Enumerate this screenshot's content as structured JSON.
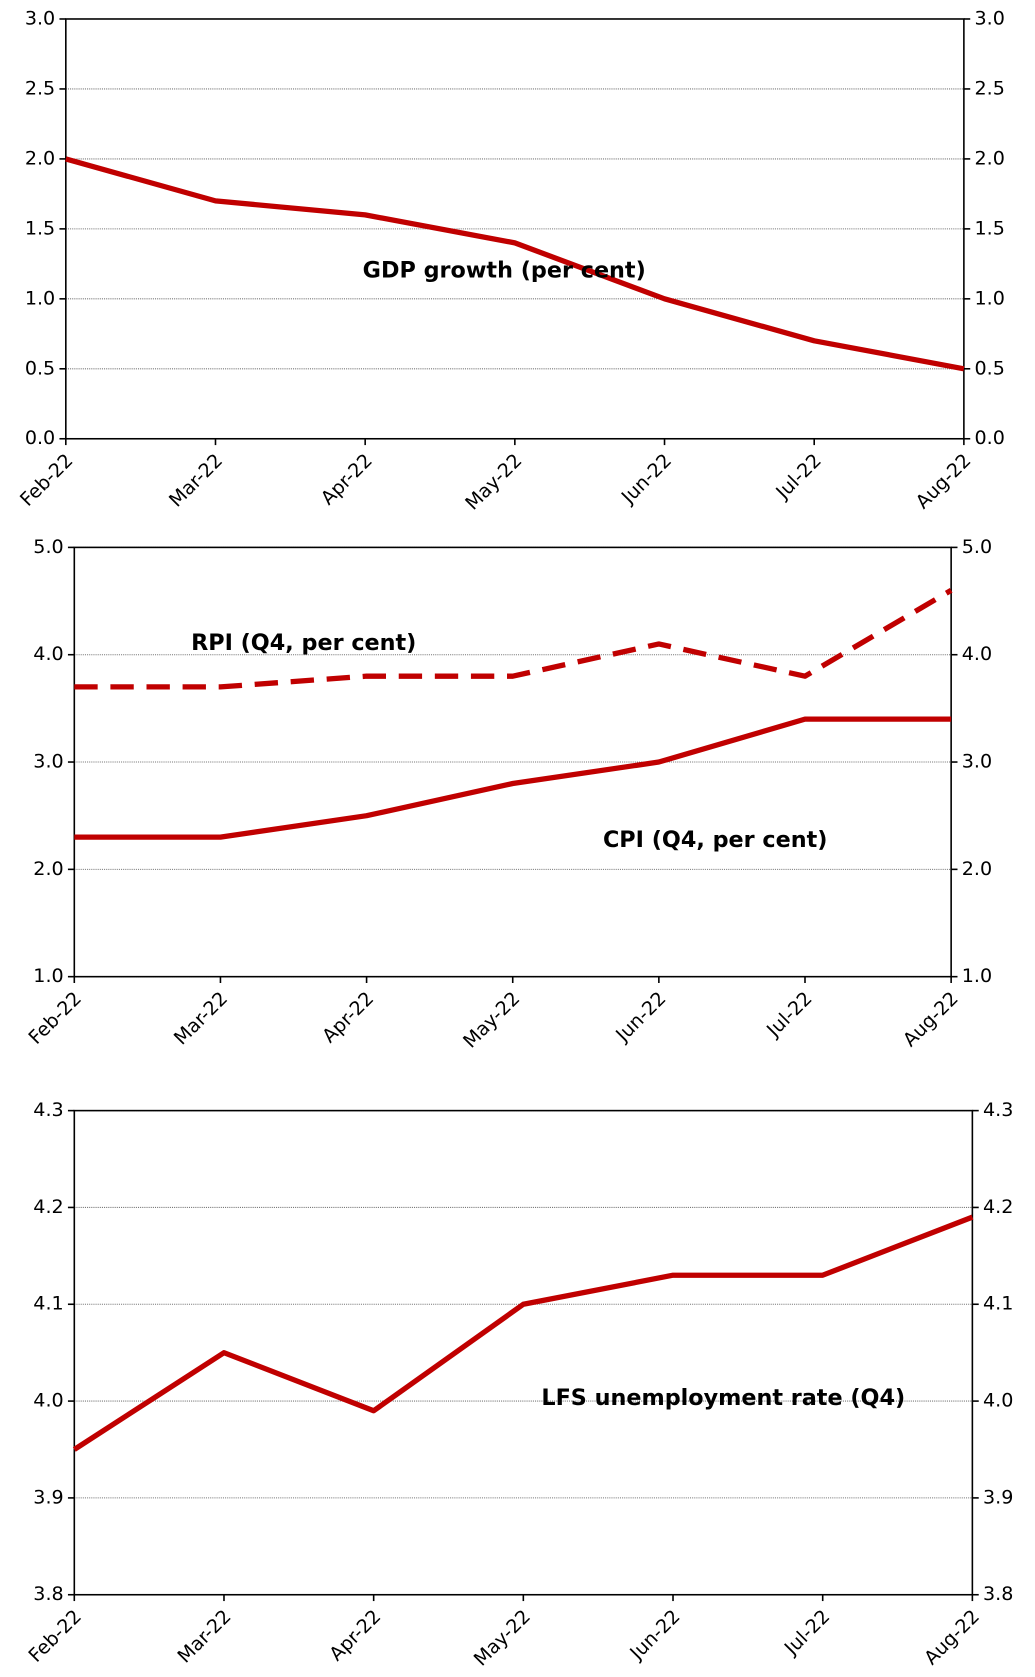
{
  "chart_data": [
    {
      "type": "line",
      "categories": [
        "Feb-22",
        "Mar-22",
        "Apr-22",
        "May-22",
        "Jun-22",
        "Jul-22",
        "Aug-22"
      ],
      "series": [
        {
          "name": "GDP growth (per cent)",
          "color": "#c00000",
          "style": "solid",
          "values": [
            2.0,
            1.7,
            1.6,
            1.4,
            1.0,
            0.7,
            0.5
          ]
        }
      ],
      "ylim": [
        0,
        3
      ],
      "yticks": [
        {
          "value": 0,
          "label": "0.0"
        },
        0.5,
        {
          "value": 1,
          "label": "1.0"
        },
        1.5,
        {
          "value": 2,
          "label": "2.0"
        },
        2.5,
        {
          "value": 3,
          "label": "3.0"
        }
      ],
      "grid": true
    },
    {
      "type": "line",
      "categories": [
        "Feb-22",
        "Mar-22",
        "Apr-22",
        "May-22",
        "Jun-22",
        "Jul-22",
        "Aug-22"
      ],
      "series": [
        {
          "name": "RPI (Q4, per cent)",
          "color": "#c00000",
          "style": "dashed",
          "values": [
            3.7,
            3.7,
            3.8,
            3.8,
            4.1,
            3.8,
            4.6
          ]
        },
        {
          "name": "CPI (Q4, per cent)",
          "color": "#c00000",
          "style": "solid",
          "values": [
            2.3,
            2.3,
            2.5,
            2.8,
            3.0,
            3.4,
            3.4
          ]
        }
      ],
      "ylim": [
        1,
        5
      ],
      "yticks": [
        {
          "value": 1,
          "label": "1.0"
        },
        {
          "value": 2,
          "label": "2.0"
        },
        {
          "value": 3,
          "label": "3.0"
        },
        {
          "value": 4,
          "label": "4.0"
        },
        {
          "value": 5,
          "label": "5.0"
        }
      ],
      "grid": true
    },
    {
      "type": "line",
      "categories": [
        "Feb-22",
        "Mar-22",
        "Apr-22",
        "May-22",
        "Jun-22",
        "Jul-22",
        "Aug-22"
      ],
      "series": [
        {
          "name": "LFS unemployment rate (Q4)",
          "color": "#c00000",
          "style": "solid",
          "values": [
            3.95,
            4.05,
            3.99,
            4.1,
            4.13,
            4.13,
            4.19
          ]
        }
      ],
      "ylim": [
        3.8,
        4.3
      ],
      "yticks": [
        3.8,
        3.9,
        {
          "value": 4,
          "label": "4.0"
        },
        4.1,
        4.2,
        4.3
      ],
      "grid": true
    }
  ]
}
